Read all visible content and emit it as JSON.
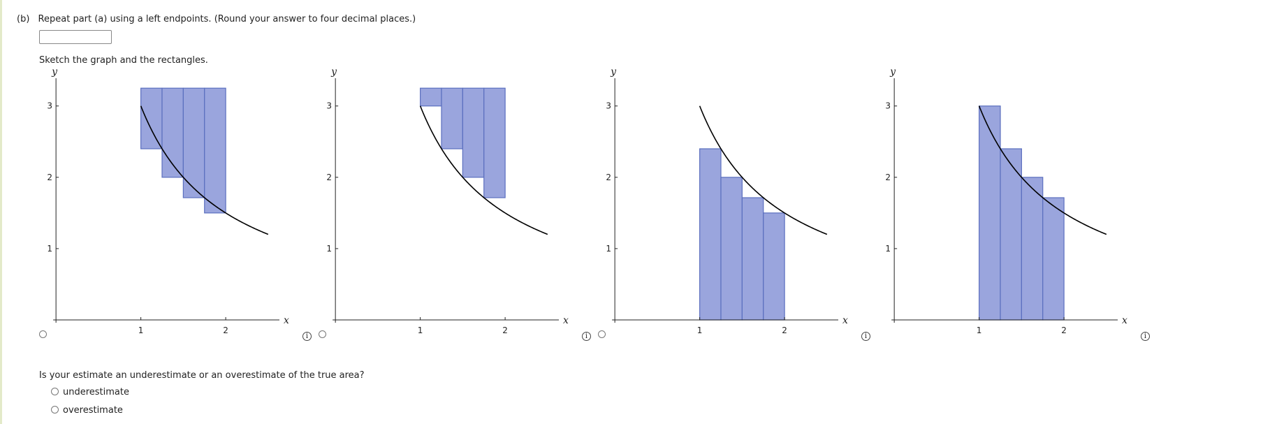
{
  "question": {
    "part_label": "(b)",
    "text": "Repeat part (a) using a left endpoints. (Round your answer to four decimal places.)",
    "answer_value": ""
  },
  "sketch": {
    "label": "Sketch the graph and the rectangles.",
    "info_glyph": "i",
    "colors": {
      "rect_fill": "#9aa5dd",
      "rect_stroke": "#5b6fbf",
      "curve": "#000000"
    },
    "graphs": [
      {
        "chart_data": {
          "type": "bar",
          "axis_labels": {
            "x": "x",
            "y": "y"
          },
          "xticks": [
            "1",
            "2"
          ],
          "yticks": [
            "1",
            "2",
            "3"
          ],
          "xlim": [
            -0.1,
            2.6
          ],
          "ylim": [
            0,
            3.35
          ],
          "curve": "y = 3/x",
          "curve_x_range": [
            1,
            2.5
          ],
          "rect_width": 0.25,
          "bars": [
            {
              "x": 1,
              "bottom": 2.4,
              "top": 3.25
            },
            {
              "x": 1.25,
              "bottom": 2.0,
              "top": 3.25
            },
            {
              "x": 1.5,
              "bottom": 1.714,
              "top": 3.25
            },
            {
              "x": 1.75,
              "bottom": 1.5,
              "top": 3.25
            }
          ]
        }
      },
      {
        "chart_data": {
          "type": "bar",
          "axis_labels": {
            "x": "x",
            "y": "y"
          },
          "xticks": [
            "1",
            "2"
          ],
          "yticks": [
            "1",
            "2",
            "3"
          ],
          "xlim": [
            -0.1,
            2.6
          ],
          "ylim": [
            0,
            3.35
          ],
          "curve": "y = 3/x",
          "curve_x_range": [
            1,
            2.5
          ],
          "rect_width": 0.25,
          "bars": [
            {
              "x": 1,
              "bottom": 3.0,
              "top": 3.25
            },
            {
              "x": 1.25,
              "bottom": 2.4,
              "top": 3.25
            },
            {
              "x": 1.5,
              "bottom": 2.0,
              "top": 3.25
            },
            {
              "x": 1.75,
              "bottom": 1.714,
              "top": 3.25
            }
          ]
        }
      },
      {
        "chart_data": {
          "type": "bar",
          "axis_labels": {
            "x": "x",
            "y": "y"
          },
          "xticks": [
            "1",
            "2"
          ],
          "yticks": [
            "1",
            "2",
            "3"
          ],
          "xlim": [
            -0.1,
            2.6
          ],
          "ylim": [
            0,
            3.35
          ],
          "curve": "y = 3/x",
          "curve_x_range": [
            1,
            2.5
          ],
          "rect_width": 0.25,
          "bars": [
            {
              "x": 1,
              "bottom": 0,
              "top": 2.4
            },
            {
              "x": 1.25,
              "bottom": 0,
              "top": 2.0
            },
            {
              "x": 1.5,
              "bottom": 0,
              "top": 1.714
            },
            {
              "x": 1.75,
              "bottom": 0,
              "top": 1.5
            }
          ]
        }
      },
      {
        "chart_data": {
          "type": "bar",
          "axis_labels": {
            "x": "x",
            "y": "y"
          },
          "xticks": [
            "1",
            "2"
          ],
          "yticks": [
            "1",
            "2",
            "3"
          ],
          "xlim": [
            -0.1,
            2.6
          ],
          "ylim": [
            0,
            3.35
          ],
          "curve": "y = 3/x",
          "curve_x_range": [
            1,
            2.5
          ],
          "rect_width": 0.25,
          "bars": [
            {
              "x": 1,
              "bottom": 0,
              "top": 3.0
            },
            {
              "x": 1.25,
              "bottom": 0,
              "top": 2.4
            },
            {
              "x": 1.5,
              "bottom": 0,
              "top": 2.0
            },
            {
              "x": 1.75,
              "bottom": 0,
              "top": 1.714
            }
          ]
        }
      }
    ]
  },
  "estimate": {
    "question": "Is your estimate an underestimate or an overestimate of the true area?",
    "options": [
      "underestimate",
      "overestimate"
    ]
  }
}
